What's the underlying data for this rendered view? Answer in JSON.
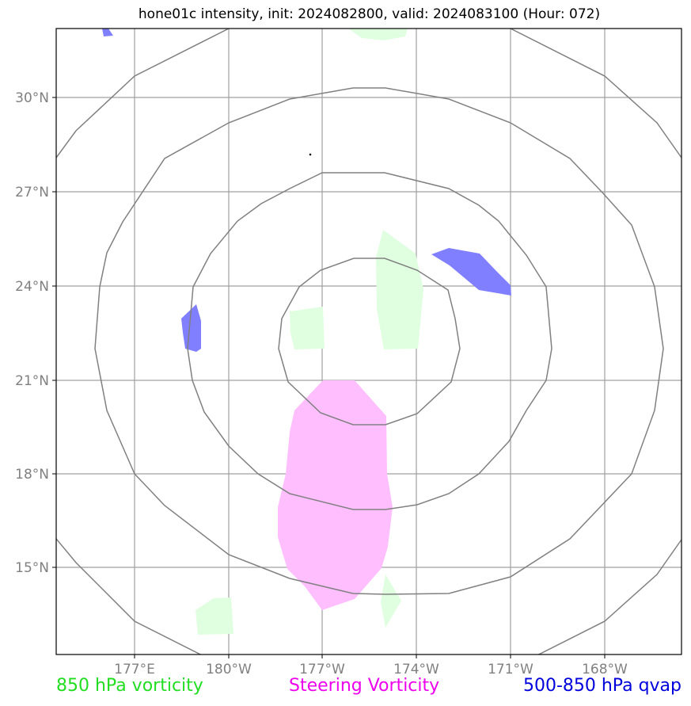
{
  "title": "hone01c intensity, init: 2024082800, valid: 2024083100 (Hour: 072)",
  "map": {
    "lat_labels": [
      "30°N",
      "27°N",
      "24°N",
      "21°N",
      "18°N",
      "15°N"
    ],
    "lon_labels": [
      "177°E",
      "180°W",
      "177°W",
      "174°W",
      "171°W",
      "168°W"
    ],
    "grid_color": "#a0a0a0",
    "ring_color": "#808080",
    "ring_count": 4
  },
  "fields": [
    {
      "name": "850 hPa vorticity",
      "color": "#e0ffe0"
    },
    {
      "name": "Steering Vorticity",
      "color": "#ffbfff"
    },
    {
      "name": "500-850 hPa qvap",
      "color": "#7f7fff"
    }
  ],
  "legend": {
    "vorticity": {
      "label": "850 hPa vorticity",
      "color": "#22dd22"
    },
    "steering": {
      "label": "Steering Vorticity",
      "color": "#ee00ee"
    },
    "qvap": {
      "label": "500-850 hPa qvap",
      "color": "#0000dd"
    }
  }
}
